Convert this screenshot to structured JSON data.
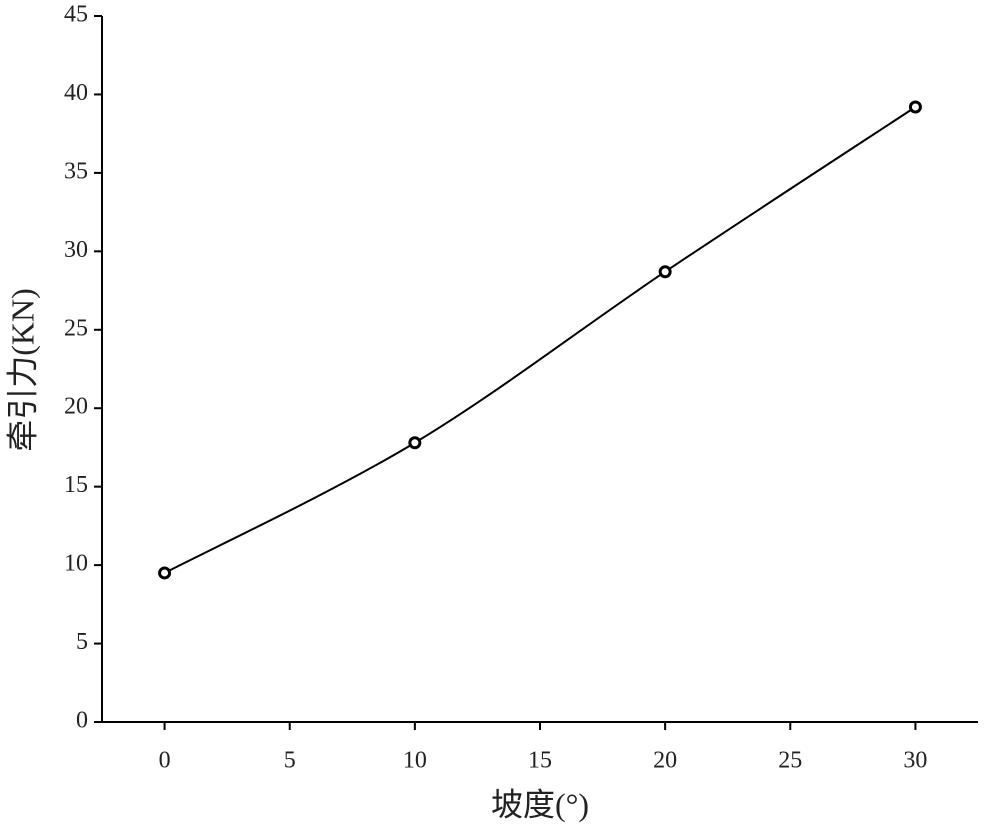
{
  "chart_data": {
    "type": "line",
    "x_label": "坡度(°)",
    "y_label": "牵引力(KN)",
    "x": [
      0,
      10,
      20,
      30
    ],
    "series": [
      {
        "color": "#000000",
        "values": [
          9.5,
          17.8,
          28.7,
          39.2
        ]
      }
    ],
    "marker": "open-circle",
    "smooth": true,
    "xlim": [
      -2.5,
      32.5
    ],
    "xticks": [
      0,
      5,
      10,
      15,
      20,
      25,
      30
    ],
    "ylim": [
      0,
      45
    ],
    "yticks": [
      0,
      5,
      10,
      15,
      20,
      25,
      30,
      35,
      40,
      45
    ],
    "grid": false
  }
}
